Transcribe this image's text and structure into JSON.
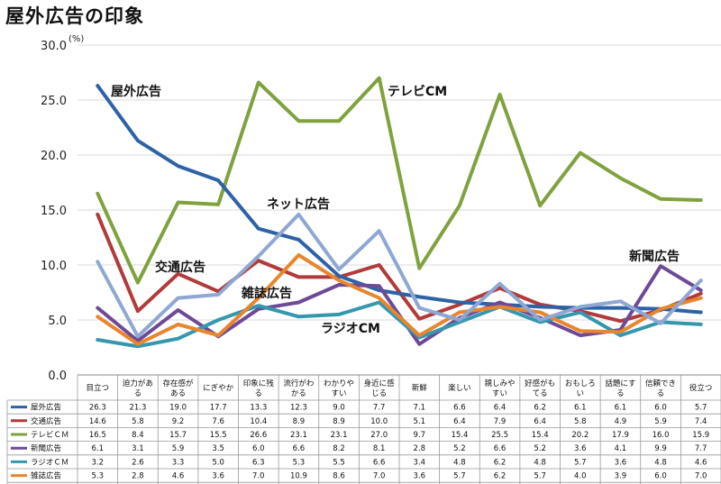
{
  "page": {
    "title": "屋外広告の印象"
  },
  "chart_data": {
    "type": "line",
    "title": "屋外広告の印象",
    "unit": "(%)",
    "ylim": [
      0,
      30
    ],
    "yticks": [
      "0.0",
      "5.0",
      "10.0",
      "15.0",
      "20.0",
      "25.0",
      "30.0"
    ],
    "grid": true,
    "categories": [
      [
        "目立つ"
      ],
      [
        "迫力があ",
        "る"
      ],
      [
        "存在感が",
        "ある"
      ],
      [
        "にぎやか"
      ],
      [
        "印象に残",
        "る"
      ],
      [
        "流行がわ",
        "かる"
      ],
      [
        "わかりや",
        "すい"
      ],
      [
        "身近に感",
        "じる"
      ],
      [
        "新鮮"
      ],
      [
        "楽しい"
      ],
      [
        "親しみや",
        "すい"
      ],
      [
        "好感がも",
        "てる"
      ],
      [
        "おもしろ",
        "い"
      ],
      [
        "話題にす",
        "る"
      ],
      [
        "信頼でき",
        "る"
      ],
      [
        "役立つ"
      ]
    ],
    "series": [
      {
        "name": "屋外広告",
        "color": "#2E62A6",
        "values": [
          26.3,
          21.3,
          19.0,
          17.7,
          13.3,
          12.3,
          9.0,
          7.7,
          7.1,
          6.6,
          6.4,
          6.2,
          6.1,
          6.1,
          6.0,
          5.7
        ]
      },
      {
        "name": "交通広告",
        "color": "#B23A3A",
        "values": [
          14.6,
          5.8,
          9.2,
          7.6,
          10.4,
          8.9,
          8.9,
          10.0,
          5.1,
          6.4,
          7.9,
          6.4,
          5.8,
          4.9,
          5.9,
          7.4
        ]
      },
      {
        "name": "テレビＣＭ",
        "color": "#7FA23E",
        "values": [
          16.5,
          8.4,
          15.7,
          15.5,
          26.6,
          23.1,
          23.1,
          27.0,
          9.7,
          15.4,
          25.5,
          15.4,
          20.2,
          17.9,
          16.0,
          15.9
        ]
      },
      {
        "name": "新聞広告",
        "color": "#6E4A96",
        "values": [
          6.1,
          3.1,
          5.9,
          3.5,
          6.0,
          6.6,
          8.2,
          8.1,
          2.8,
          5.2,
          6.6,
          5.2,
          3.6,
          4.1,
          9.9,
          7.7
        ]
      },
      {
        "name": "ラジオＣＭ",
        "color": "#3597AE",
        "values": [
          3.2,
          2.6,
          3.3,
          5.0,
          6.3,
          5.3,
          5.5,
          6.6,
          3.4,
          4.8,
          6.2,
          4.8,
          5.7,
          3.6,
          4.8,
          4.6
        ]
      },
      {
        "name": "雑誌広告",
        "color": "#E8862E",
        "values": [
          5.3,
          2.8,
          4.6,
          3.6,
          7.0,
          10.9,
          8.6,
          7.0,
          3.6,
          5.7,
          6.2,
          5.7,
          4.0,
          3.9,
          6.0,
          7.0
        ]
      },
      {
        "name": "ネット広告",
        "color": "#8FA7D3",
        "values": [
          10.3,
          3.5,
          7.0,
          7.3,
          10.8,
          14.6,
          9.6,
          13.1,
          6.1,
          5.0,
          8.3,
          5.0,
          6.2,
          6.7,
          4.7,
          8.6
        ]
      }
    ],
    "annotations": [
      {
        "text": "屋外広告",
        "series": 0
      },
      {
        "text": "テレビCM",
        "series": 2
      },
      {
        "text": "ネット広告",
        "series": 6
      },
      {
        "text": "交通広告",
        "series": 1
      },
      {
        "text": "雑誌広告",
        "series": 5
      },
      {
        "text": "ラジオCM",
        "series": 4
      },
      {
        "text": "新聞広告",
        "series": 3
      }
    ]
  }
}
